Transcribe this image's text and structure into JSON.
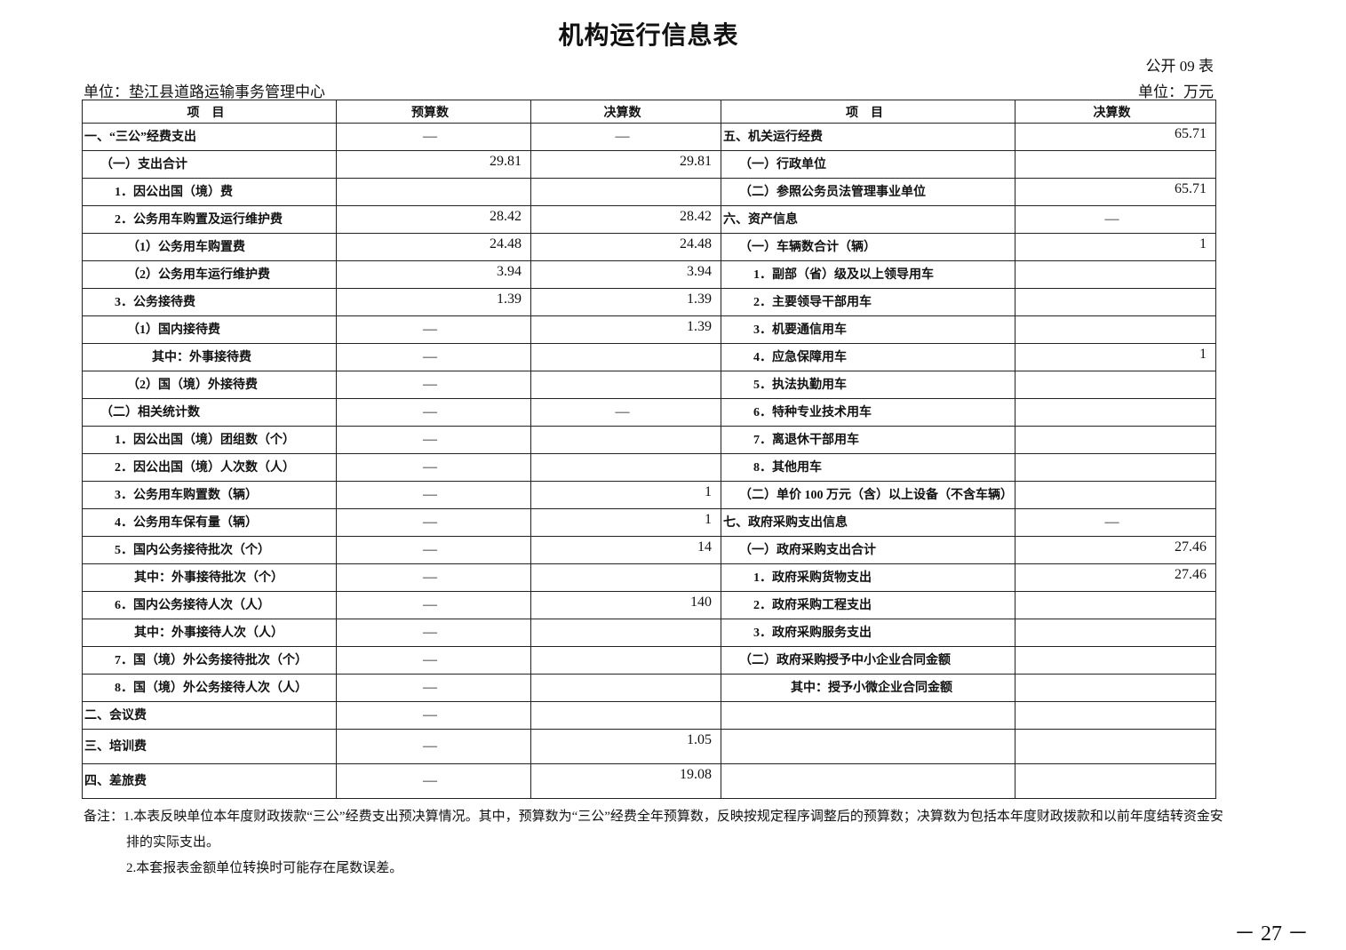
{
  "title": "机构运行信息表",
  "form_no": "公开 09 表",
  "unit_left": "单位：垫江县道路运输事务管理中心",
  "unit_right": "单位：万元",
  "headers": [
    "项　目",
    "预算数",
    "决算数",
    "项　目",
    "决算数"
  ],
  "rows": [
    {
      "l": "一、“三公”经费支出",
      "ll": 0,
      "b": "—",
      "a": "—",
      "r": "五、机关运行经费",
      "rl": 0,
      "rv": "65.71"
    },
    {
      "l": "（一）支出合计",
      "ll": 1,
      "b": "29.81",
      "a": "29.81",
      "r": "（一）行政单位",
      "rl": 1,
      "rv": ""
    },
    {
      "l": "1．因公出国（境）费",
      "ll": 2,
      "b": "",
      "a": "",
      "r": "（二）参照公务员法管理事业单位",
      "rl": 1,
      "rv": "65.71"
    },
    {
      "l": "2．公务用车购置及运行维护费",
      "ll": 2,
      "b": "28.42",
      "a": "28.42",
      "r": "六、资产信息",
      "rl": 0,
      "rv": "—"
    },
    {
      "l": "（1）公务用车购置费",
      "ll": 3,
      "b": "24.48",
      "a": "24.48",
      "r": "（一）车辆数合计（辆）",
      "rl": 1,
      "rv": "1"
    },
    {
      "l": "（2）公务用车运行维护费",
      "ll": 3,
      "b": "3.94",
      "a": "3.94",
      "r": "1．副部（省）级及以上领导用车",
      "rl": 2,
      "rv": ""
    },
    {
      "l": "3．公务接待费",
      "ll": 2,
      "b": "1.39",
      "a": "1.39",
      "r": "2．主要领导干部用车",
      "rl": 2,
      "rv": ""
    },
    {
      "l": "（1）国内接待费",
      "ll": 3,
      "b": "—",
      "a": "1.39",
      "r": "3．机要通信用车",
      "rl": 2,
      "rv": ""
    },
    {
      "l": "其中：外事接待费",
      "ll": 4,
      "b": "—",
      "a": "",
      "r": "4．应急保障用车",
      "rl": 2,
      "rv": "1"
    },
    {
      "l": "（2）国（境）外接待费",
      "ll": 3,
      "b": "—",
      "a": "",
      "r": "5．执法执勤用车",
      "rl": 2,
      "rv": ""
    },
    {
      "l": "（二）相关统计数",
      "ll": 1,
      "b": "—",
      "a": "—",
      "r": "6．特种专业技术用车",
      "rl": 2,
      "rv": ""
    },
    {
      "l": "1．因公出国（境）团组数（个）",
      "ll": 2,
      "b": "—",
      "a": "",
      "r": "7．离退休干部用车",
      "rl": 2,
      "rv": ""
    },
    {
      "l": "2．因公出国（境）人次数（人）",
      "ll": 2,
      "b": "—",
      "a": "",
      "r": "8．其他用车",
      "rl": 2,
      "rv": ""
    },
    {
      "l": "3．公务用车购置数（辆）",
      "ll": 2,
      "b": "—",
      "a": "1",
      "r": "（二）单价 100 万元（含）以上设备（不含车辆）",
      "rl": 1,
      "rv": ""
    },
    {
      "l": "4．公务用车保有量（辆）",
      "ll": 2,
      "b": "—",
      "a": "1",
      "r": "七、政府采购支出信息",
      "rl": 0,
      "rv": "—"
    },
    {
      "l": "5．国内公务接待批次（个）",
      "ll": 2,
      "b": "—",
      "a": "14",
      "r": "（一）政府采购支出合计",
      "rl": 1,
      "rv": "27.46"
    },
    {
      "l": "其中：外事接待批次（个）",
      "ll": 5,
      "b": "—",
      "a": "",
      "r": "1．政府采购货物支出",
      "rl": 2,
      "rv": "27.46"
    },
    {
      "l": "6．国内公务接待人次（人）",
      "ll": 2,
      "b": "—",
      "a": "140",
      "r": "2．政府采购工程支出",
      "rl": 2,
      "rv": ""
    },
    {
      "l": "其中：外事接待人次（人）",
      "ll": 5,
      "b": "—",
      "a": "",
      "r": "3．政府采购服务支出",
      "rl": 2,
      "rv": ""
    },
    {
      "l": "7．国（境）外公务接待批次（个）",
      "ll": 2,
      "b": "—",
      "a": "",
      "r": "（二）政府采购授予中小企业合同金额",
      "rl": 1,
      "rv": ""
    },
    {
      "l": "8．国（境）外公务接待人次（人）",
      "ll": 2,
      "b": "—",
      "a": "",
      "r": "其中：授予小微企业合同金额",
      "rl": 4,
      "rv": ""
    },
    {
      "l": "二、会议费",
      "ll": 0,
      "b": "—",
      "a": "",
      "r": "",
      "rl": 0,
      "rv": ""
    },
    {
      "l": "三、培训费",
      "ll": 0,
      "b": "—",
      "a": "1.05",
      "r": "",
      "rl": 0,
      "rv": ""
    },
    {
      "l": "四、差旅费",
      "ll": 0,
      "b": "—",
      "a": "19.08",
      "r": "",
      "rl": 0,
      "rv": ""
    }
  ],
  "notes": {
    "line1": "备注：1.本表反映单位本年度财政拨款“三公”经费支出预决算情况。其中，预算数为“三公”经费全年预算数，反映按规定程序调整后的预算数；决算数为包括本年度财政拨款和以前年度结转资金安",
    "line2": "排的实际支出。",
    "line3": "2.本套报表金额单位转换时可能存在尾数误差。"
  },
  "page_number": "－ 27 －"
}
